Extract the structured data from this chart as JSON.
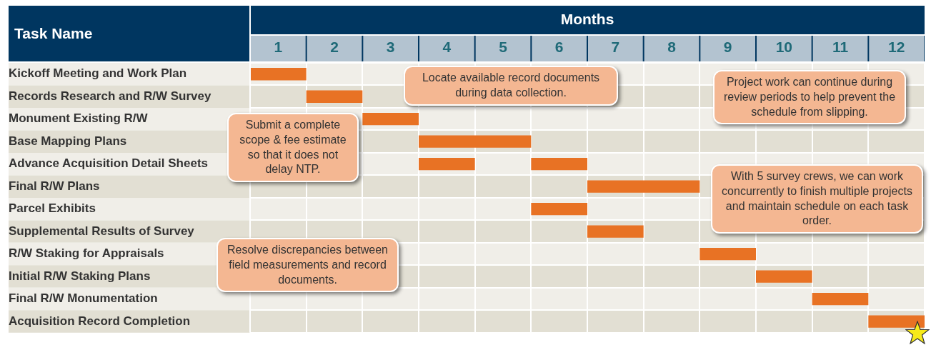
{
  "chart_data": {
    "type": "bar",
    "orientation": "horizontal",
    "xlabel": "Months",
    "ylabel": "Task Name",
    "categories": [
      "Kickoff Meeting and Work Plan",
      "Records Research and R/W Survey",
      "Monument Existing R/W",
      "Base Mapping Plans",
      "Advance Acquisition Detail Sheets",
      "Final R/W Plans",
      "Parcel Exhibits",
      "Supplemental Results of Survey",
      "R/W Staking for Appraisals",
      "Initial R/W Staking Plans",
      "Final R/W Monumentation",
      "Acquisition Record Completion"
    ],
    "series": [
      {
        "color": "#e87224",
        "base": [
          0,
          1,
          2,
          3,
          3,
          6,
          5,
          6,
          8,
          9,
          10,
          11
        ],
        "values": [
          1,
          1,
          1,
          2,
          1,
          2,
          1,
          1,
          1,
          1,
          1,
          1
        ]
      },
      {
        "color": "#e87224",
        "base": [
          null,
          null,
          null,
          null,
          5,
          null,
          null,
          null,
          null,
          null,
          null,
          null
        ],
        "values": [
          null,
          null,
          null,
          null,
          1,
          null,
          null,
          null,
          null,
          null,
          null,
          null
        ]
      }
    ],
    "xlim": [
      0,
      12
    ],
    "xticks": [
      {
        "value": 0,
        "label": null
      },
      {
        "value": 0.5,
        "label": "1"
      },
      {
        "value": 1,
        "label": null
      },
      {
        "value": 1.5,
        "label": "2"
      },
      {
        "value": 2,
        "label": null
      },
      {
        "value": 2.5,
        "label": "3"
      },
      {
        "value": 3,
        "label": null
      },
      {
        "value": 3.5,
        "label": "4"
      },
      {
        "value": 4,
        "label": null
      },
      {
        "value": 4.5,
        "label": "5"
      },
      {
        "value": 5,
        "label": null
      },
      {
        "value": 5.5,
        "label": "6"
      },
      {
        "value": 6,
        "label": null
      },
      {
        "value": 6.5,
        "label": "7"
      },
      {
        "value": 7,
        "label": null
      },
      {
        "value": 7.5,
        "label": "8"
      },
      {
        "value": 8,
        "label": null
      },
      {
        "value": 8.5,
        "label": "9"
      },
      {
        "value": 9,
        "label": null
      },
      {
        "value": 9.5,
        "label": "10"
      },
      {
        "value": 10,
        "label": null
      },
      {
        "value": 10.5,
        "label": "11"
      },
      {
        "value": 11,
        "label": null
      },
      {
        "value": 11.5,
        "label": "12"
      },
      {
        "value": 12,
        "label": null
      }
    ],
    "grid": true,
    "legend": false,
    "annotations": [
      "Locate available record documents during data collection.",
      "Project work can continue during review periods to help prevent the schedule from slipping.",
      "Submit a complete scope & fee estimate so that it does not delay NTP.",
      "With 5 survey crews, we can work concurrently to finish multiple projects and maintain schedule on each task order.",
      "Resolve discrepancies between field measurements and record documents."
    ]
  }
}
